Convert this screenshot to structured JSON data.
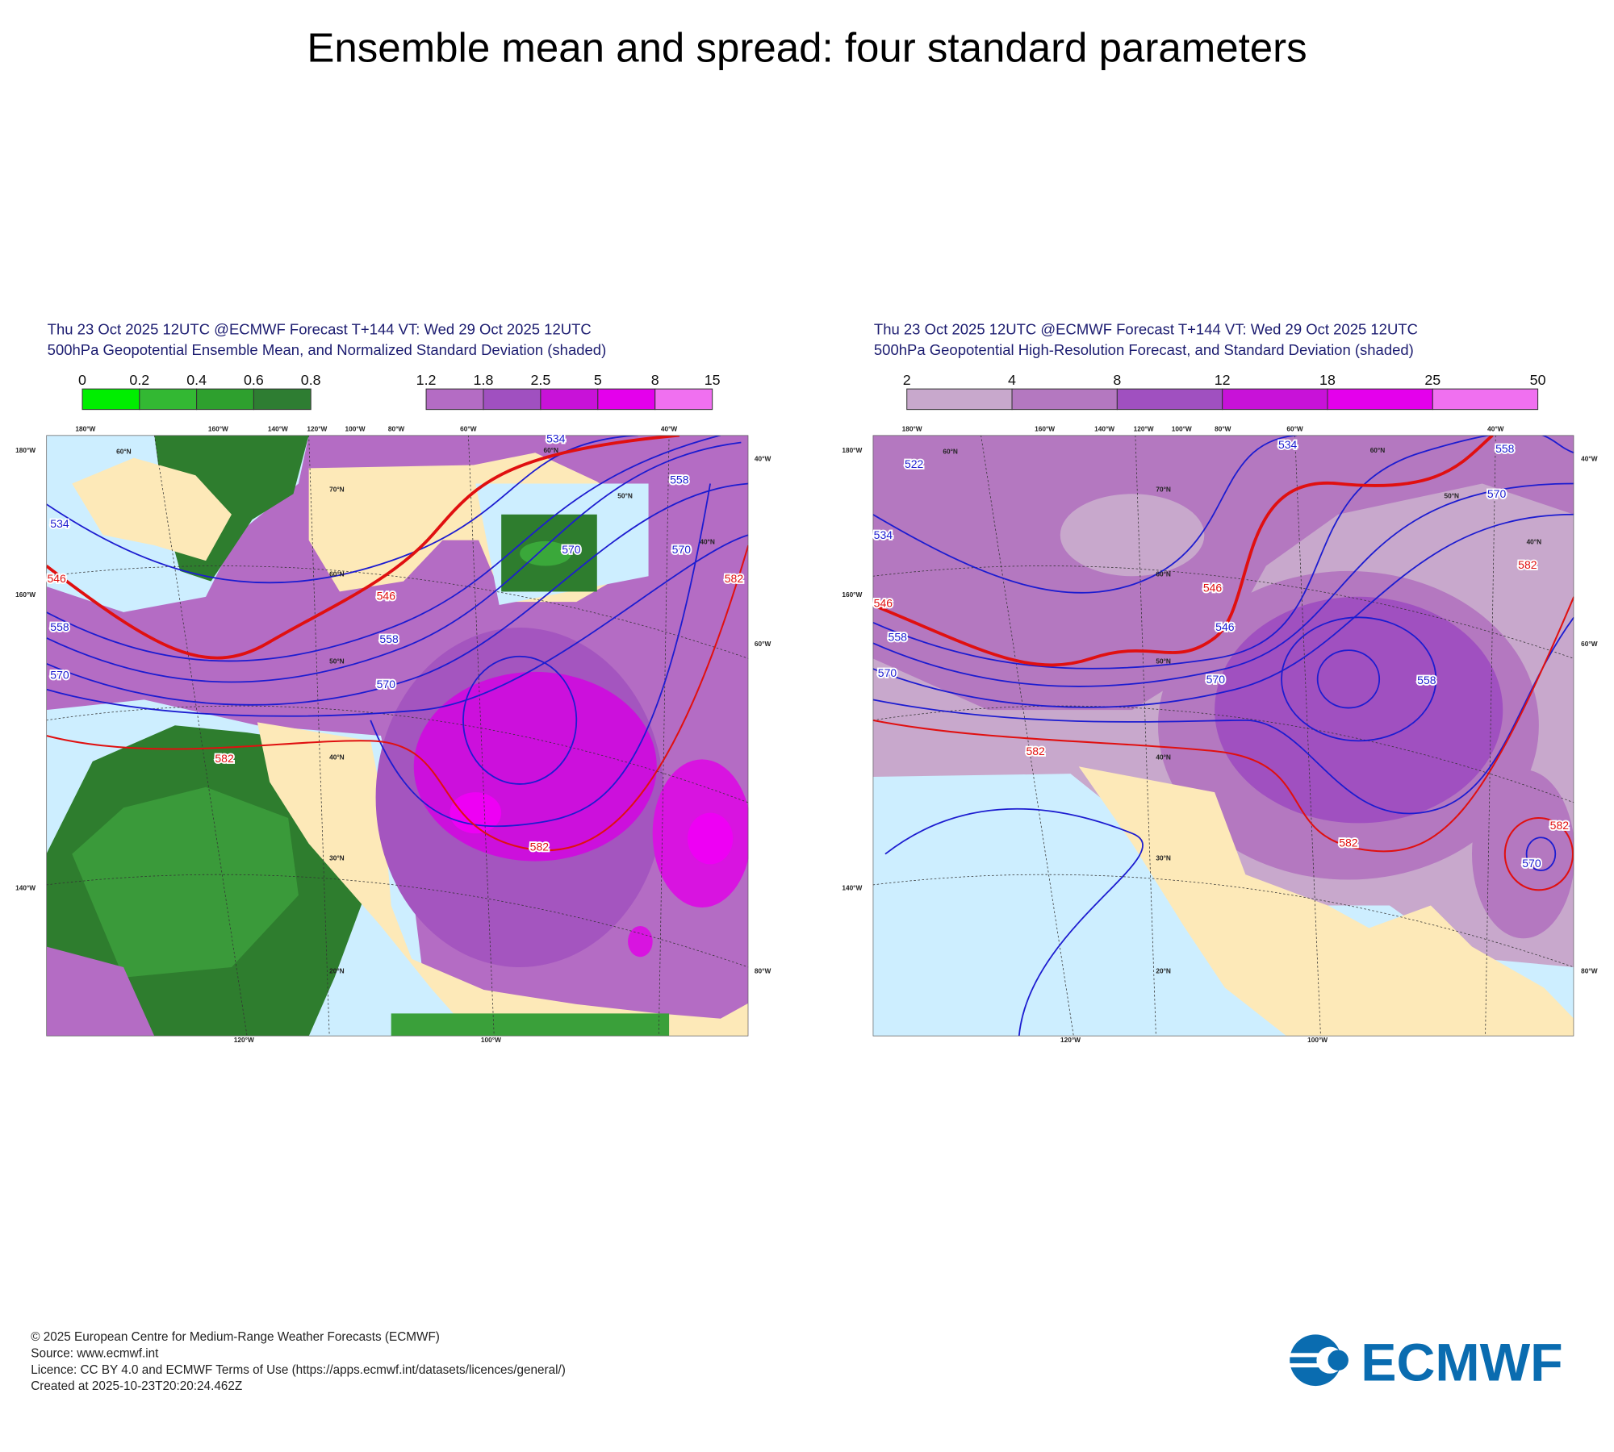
{
  "title": "Ensemble mean and spread: four standard parameters",
  "panels": [
    {
      "header": [
        "Thu 23 Oct 2025 12UTC @ECMWF Forecast T+144 VT: Wed 29 Oct 2025 12UTC",
        "500hPa Geopotential Ensemble Mean, and Normalized Standard Deviation (shaded)"
      ],
      "colorbars": [
        {
          "ticks": [
            0,
            0.2,
            0.4,
            0.6,
            0.8
          ],
          "colors": [
            "#00ee00",
            "#33b833",
            "#2ea02e",
            "#2e7d32"
          ]
        },
        {
          "ticks": [
            1.2,
            1.8,
            2.5,
            5,
            8,
            15
          ],
          "colors": [
            "#b46cc4",
            "#a050c0",
            "#c812d8",
            "#e400ec",
            "#f070f0"
          ]
        }
      ],
      "lon_top": [
        "180°W",
        "160°W",
        "140°W",
        "120°W",
        "100°W",
        "80°W",
        "60°W",
        "40°W"
      ],
      "lon_left": [
        "180°W",
        "160°W",
        "140°W"
      ],
      "lon_right": [
        "40°W",
        "60°W",
        "80°W"
      ],
      "lon_bottom": [
        "120°W",
        "100°W"
      ],
      "lat_labels": [
        "60°N",
        "70°N",
        "60°N",
        "50°N",
        "40°N",
        "30°N",
        "20°N",
        "60°N",
        "50°N",
        "40°N"
      ],
      "contour_labels": [
        534,
        558,
        534,
        570,
        570,
        546,
        546,
        582,
        558,
        558,
        570,
        570,
        582,
        582
      ]
    },
    {
      "header": [
        "Thu 23 Oct 2025 12UTC @ECMWF Forecast T+144 VT: Wed 29 Oct 2025 12UTC",
        "500hPa Geopotential High-Resolution Forecast, and Standard Deviation (shaded)"
      ],
      "colorbars": [
        {
          "ticks": [
            2,
            4,
            8,
            12,
            18,
            25,
            50
          ],
          "colors": [
            "#c8a8cc",
            "#b478c0",
            "#a050c0",
            "#c812d8",
            "#e400ec",
            "#f070f0"
          ]
        }
      ],
      "lon_top": [
        "180°W",
        "160°W",
        "140°W",
        "120°W",
        "100°W",
        "80°W",
        "60°W",
        "40°W"
      ],
      "lon_left": [
        "180°W",
        "160°W",
        "140°W"
      ],
      "lon_right": [
        "40°W",
        "60°W",
        "80°W"
      ],
      "lon_bottom": [
        "120°W",
        "100°W"
      ],
      "lat_labels": [
        "60°N",
        "70°N",
        "60°N",
        "50°N",
        "40°N",
        "30°N",
        "20°N",
        "60°N",
        "50°N",
        "40°N"
      ],
      "contour_labels": [
        534,
        558,
        522,
        570,
        534,
        582,
        546,
        546,
        546,
        558,
        570,
        570,
        558,
        582,
        582,
        582,
        570
      ]
    }
  ],
  "footer": [
    "© 2025 European Centre for Medium-Range Weather Forecasts (ECMWF)",
    "Source: www.ecmwf.int",
    "Licence: CC BY 4.0 and ECMWF Terms of Use (https://apps.ecmwf.int/datasets/licences/general/)",
    "Created at 2025-10-23T20:20:24.462Z"
  ],
  "logo": "ECMWF"
}
